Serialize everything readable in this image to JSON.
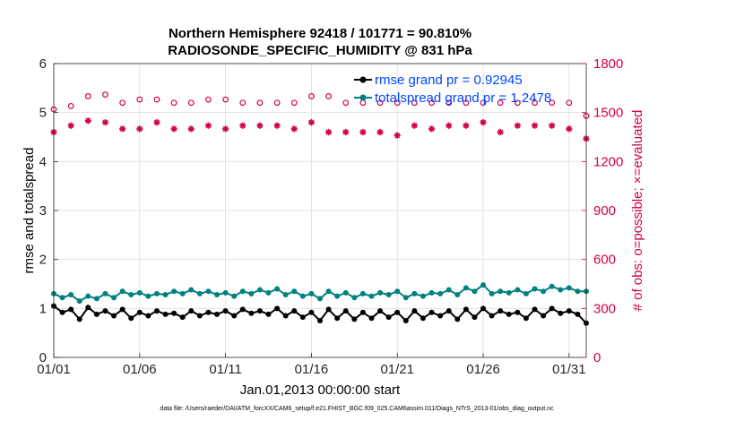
{
  "colors": {
    "rmse": "#000000",
    "totalspread": "#008080",
    "obs": "#d3004b",
    "legend_text": "#0047ff",
    "grid": "#dedede"
  },
  "chart_data": {
    "type": "line",
    "title": "Northern Hemisphere 92418 / 101771 = 90.810%",
    "subtitle": "RADIOSONDE_SPECIFIC_HUMIDITY @ 831 hPa",
    "xlabel": "Jan.01,2013 00:00:00 start",
    "ylabel": "rmse and totalspread",
    "ylabel_right": "# of obs: o=possible; ×=evaluated",
    "xlim": [
      0,
      31
    ],
    "ylim": [
      0,
      6
    ],
    "ylim_right": [
      0,
      1800
    ],
    "grid": true,
    "legend_position": "top-right",
    "x_ticks": [
      {
        "pos": 0,
        "label": "01/01"
      },
      {
        "pos": 5,
        "label": "01/06"
      },
      {
        "pos": 10,
        "label": "01/11"
      },
      {
        "pos": 15,
        "label": "01/16"
      },
      {
        "pos": 20,
        "label": "01/21"
      },
      {
        "pos": 25,
        "label": "01/26"
      },
      {
        "pos": 30,
        "label": "01/31"
      }
    ],
    "y_ticks": [
      "0",
      "1",
      "2",
      "3",
      "4",
      "5",
      "6"
    ],
    "y_ticks_right": [
      "0",
      "300",
      "600",
      "900",
      "1200",
      "1500",
      "1800"
    ],
    "series": [
      {
        "name": "rmse",
        "legend_label": "rmse grand pr = 0.92945",
        "axis": "left",
        "marker": "dot",
        "x": [
          0,
          0.5,
          1,
          1.5,
          2,
          2.5,
          3,
          3.5,
          4,
          4.5,
          5,
          5.5,
          6,
          6.5,
          7,
          7.5,
          8,
          8.5,
          9,
          9.5,
          10,
          10.5,
          11,
          11.5,
          12,
          12.5,
          13,
          13.5,
          14,
          14.5,
          15,
          15.5,
          16,
          16.5,
          17,
          17.5,
          18,
          18.5,
          19,
          19.5,
          20,
          20.5,
          21,
          21.5,
          22,
          22.5,
          23,
          23.5,
          24,
          24.5,
          25,
          25.5,
          26,
          26.5,
          27,
          27.5,
          28,
          28.5,
          29,
          29.5,
          30,
          30.5,
          31
        ],
        "values": [
          1.05,
          0.92,
          0.98,
          0.78,
          1.02,
          0.88,
          0.95,
          0.85,
          0.98,
          0.8,
          0.92,
          0.85,
          0.95,
          0.88,
          0.9,
          0.82,
          0.95,
          0.85,
          0.92,
          0.88,
          0.95,
          0.85,
          0.98,
          0.9,
          0.95,
          0.88,
          1.0,
          0.85,
          0.95,
          0.82,
          0.92,
          0.75,
          0.98,
          0.8,
          0.95,
          0.78,
          0.92,
          0.8,
          0.95,
          0.82,
          0.92,
          0.75,
          0.95,
          0.8,
          0.92,
          0.85,
          0.95,
          0.78,
          0.98,
          0.82,
          1.0,
          0.85,
          0.95,
          0.88,
          0.92,
          0.8,
          0.98,
          0.85,
          1.0,
          0.9,
          0.95,
          0.88,
          0.7
        ]
      },
      {
        "name": "totalspread",
        "legend_label": "totalspread grand pr = 1.2478",
        "axis": "left",
        "marker": "dot",
        "x": [
          0,
          0.5,
          1,
          1.5,
          2,
          2.5,
          3,
          3.5,
          4,
          4.5,
          5,
          5.5,
          6,
          6.5,
          7,
          7.5,
          8,
          8.5,
          9,
          9.5,
          10,
          10.5,
          11,
          11.5,
          12,
          12.5,
          13,
          13.5,
          14,
          14.5,
          15,
          15.5,
          16,
          16.5,
          17,
          17.5,
          18,
          18.5,
          19,
          19.5,
          20,
          20.5,
          21,
          21.5,
          22,
          22.5,
          23,
          23.5,
          24,
          24.5,
          25,
          25.5,
          26,
          26.5,
          27,
          27.5,
          28,
          28.5,
          29,
          29.5,
          30,
          30.5,
          31
        ],
        "values": [
          1.3,
          1.22,
          1.28,
          1.15,
          1.25,
          1.2,
          1.3,
          1.22,
          1.35,
          1.28,
          1.32,
          1.25,
          1.3,
          1.28,
          1.35,
          1.3,
          1.38,
          1.3,
          1.35,
          1.28,
          1.32,
          1.25,
          1.35,
          1.3,
          1.38,
          1.32,
          1.4,
          1.28,
          1.35,
          1.25,
          1.3,
          1.2,
          1.35,
          1.25,
          1.32,
          1.22,
          1.3,
          1.25,
          1.32,
          1.28,
          1.35,
          1.22,
          1.3,
          1.25,
          1.32,
          1.3,
          1.38,
          1.28,
          1.42,
          1.35,
          1.48,
          1.3,
          1.35,
          1.32,
          1.38,
          1.3,
          1.4,
          1.35,
          1.45,
          1.38,
          1.42,
          1.35,
          1.35
        ]
      },
      {
        "name": "obs possible",
        "axis": "right",
        "marker": "circle",
        "x": [
          0,
          1,
          2,
          3,
          4,
          5,
          6,
          7,
          8,
          9,
          10,
          11,
          12,
          13,
          14,
          15,
          16,
          17,
          18,
          19,
          20,
          21,
          22,
          23,
          24,
          25,
          26,
          27,
          28,
          29,
          30,
          31
        ],
        "values": [
          1520,
          1540,
          1600,
          1610,
          1560,
          1580,
          1580,
          1560,
          1560,
          1580,
          1580,
          1560,
          1560,
          1560,
          1560,
          1600,
          1600,
          1560,
          1560,
          1560,
          1560,
          1560,
          1560,
          1560,
          1560,
          1560,
          1560,
          1560,
          1560,
          1560,
          1560,
          1480
        ]
      },
      {
        "name": "obs evaluated",
        "axis": "right",
        "marker": "star",
        "x": [
          0,
          1,
          2,
          3,
          4,
          5,
          6,
          7,
          8,
          9,
          10,
          11,
          12,
          13,
          14,
          15,
          16,
          17,
          18,
          19,
          20,
          21,
          22,
          23,
          24,
          25,
          26,
          27,
          28,
          29,
          30,
          31
        ],
        "values": [
          1380,
          1420,
          1450,
          1440,
          1400,
          1400,
          1440,
          1400,
          1400,
          1420,
          1400,
          1420,
          1420,
          1420,
          1400,
          1440,
          1380,
          1380,
          1380,
          1380,
          1360,
          1420,
          1400,
          1420,
          1420,
          1440,
          1380,
          1420,
          1420,
          1420,
          1400,
          1340
        ]
      }
    ]
  },
  "footer": "data file: /Users/raeder/DAI/ATM_forcXX/CAM6_setup/f.e21.FHIST_BGC.f09_025.CAM6assim.011/Diags_NTrS_2013-01/obs_diag_output.nc"
}
